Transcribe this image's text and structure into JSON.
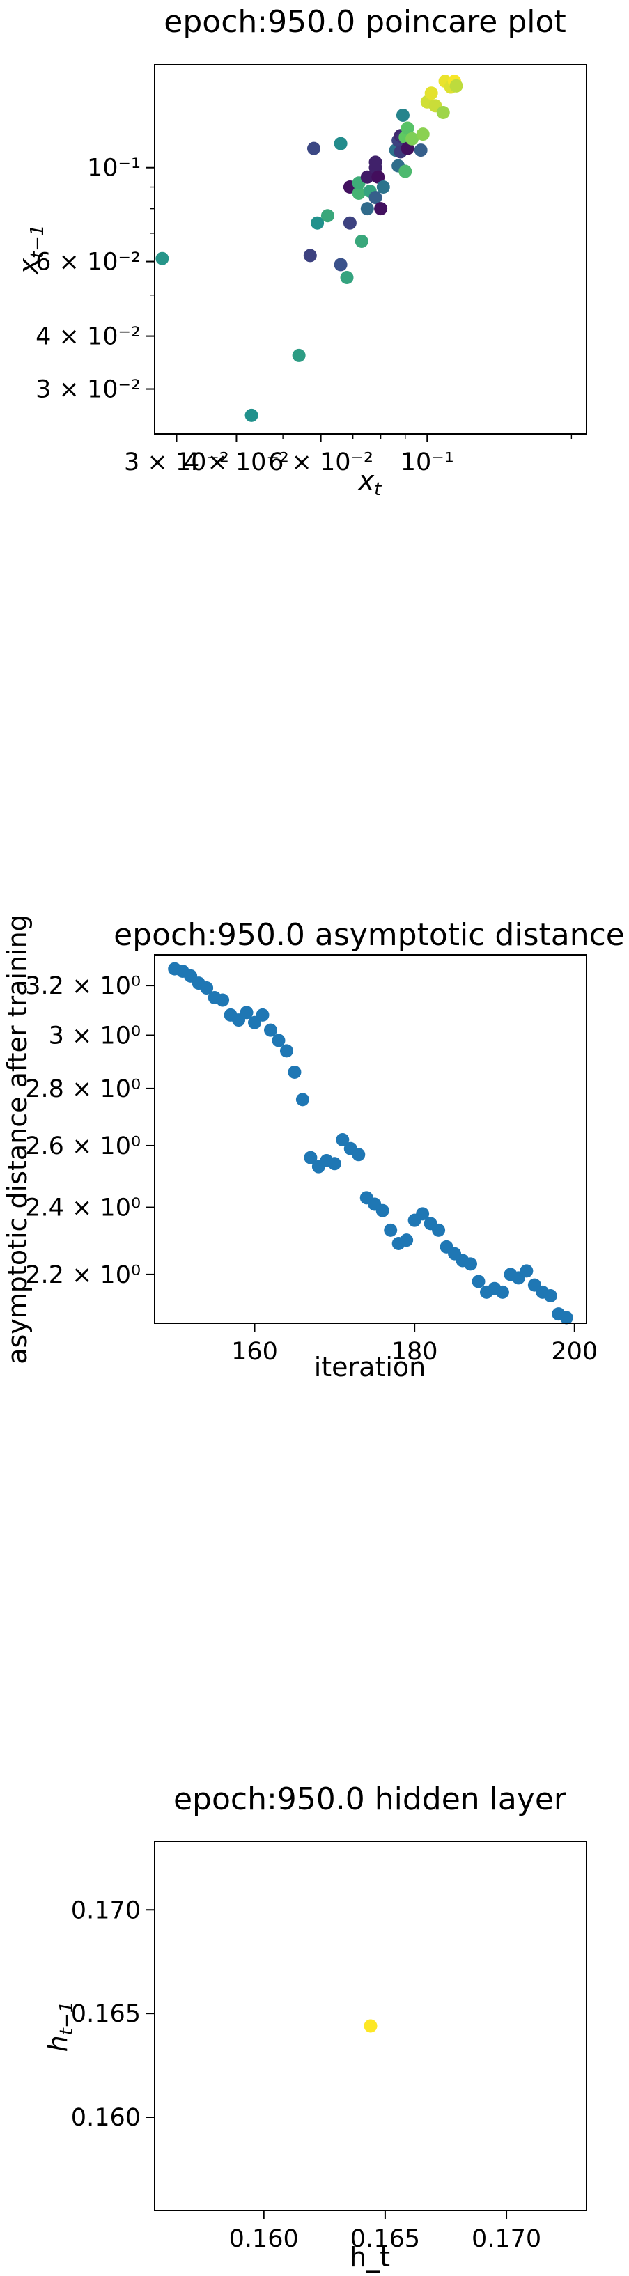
{
  "chart_data": [
    {
      "type": "scatter",
      "title": "epoch:950.0 poincare plot",
      "xlabel": "x_t",
      "ylabel": "x_{t−1}",
      "x_scale": "log",
      "y_scale": "log",
      "xlim": [
        0.027,
        0.215
      ],
      "ylim": [
        0.0235,
        0.175
      ],
      "grid": false,
      "colormap": "viridis",
      "x_ticks": [
        {
          "value": 0.03,
          "label": "3 × 10⁻²"
        },
        {
          "value": 0.04,
          "label": "4 × 10⁻²"
        },
        {
          "value": 0.06,
          "label": "6 × 10⁻²"
        },
        {
          "value": 0.1,
          "label": "10⁻¹"
        }
      ],
      "y_ticks": [
        {
          "value": 0.03,
          "label": "3 × 10⁻²"
        },
        {
          "value": 0.04,
          "label": "4 × 10⁻²"
        },
        {
          "value": 0.06,
          "label": "6 × 10⁻²"
        },
        {
          "value": 0.1,
          "label": "10⁻¹"
        }
      ],
      "points": [
        {
          "x": 0.043,
          "y": 0.026,
          "c": 0.5
        },
        {
          "x": 0.028,
          "y": 0.061,
          "c": 0.52
        },
        {
          "x": 0.054,
          "y": 0.036,
          "c": 0.55
        },
        {
          "x": 0.057,
          "y": 0.062,
          "c": 0.2
        },
        {
          "x": 0.058,
          "y": 0.111,
          "c": 0.22
        },
        {
          "x": 0.059,
          "y": 0.074,
          "c": 0.5
        },
        {
          "x": 0.062,
          "y": 0.077,
          "c": 0.6
        },
        {
          "x": 0.066,
          "y": 0.114,
          "c": 0.48
        },
        {
          "x": 0.066,
          "y": 0.059,
          "c": 0.25
        },
        {
          "x": 0.068,
          "y": 0.055,
          "c": 0.58
        },
        {
          "x": 0.069,
          "y": 0.074,
          "c": 0.2
        },
        {
          "x": 0.069,
          "y": 0.09,
          "c": 0.05
        },
        {
          "x": 0.072,
          "y": 0.087,
          "c": 0.65
        },
        {
          "x": 0.072,
          "y": 0.092,
          "c": 0.62
        },
        {
          "x": 0.073,
          "y": 0.067,
          "c": 0.6
        },
        {
          "x": 0.075,
          "y": 0.08,
          "c": 0.35
        },
        {
          "x": 0.075,
          "y": 0.095,
          "c": 0.08
        },
        {
          "x": 0.076,
          "y": 0.088,
          "c": 0.58
        },
        {
          "x": 0.078,
          "y": 0.085,
          "c": 0.3
        },
        {
          "x": 0.078,
          "y": 0.1,
          "c": 0.1
        },
        {
          "x": 0.078,
          "y": 0.103,
          "c": 0.1
        },
        {
          "x": 0.079,
          "y": 0.095,
          "c": 0.04
        },
        {
          "x": 0.08,
          "y": 0.08,
          "c": 0.05
        },
        {
          "x": 0.081,
          "y": 0.09,
          "c": 0.38
        },
        {
          "x": 0.086,
          "y": 0.11,
          "c": 0.38
        },
        {
          "x": 0.087,
          "y": 0.116,
          "c": 0.2
        },
        {
          "x": 0.087,
          "y": 0.101,
          "c": 0.36
        },
        {
          "x": 0.088,
          "y": 0.119,
          "c": 0.12
        },
        {
          "x": 0.088,
          "y": 0.109,
          "c": 0.18
        },
        {
          "x": 0.089,
          "y": 0.118,
          "c": 0.15
        },
        {
          "x": 0.089,
          "y": 0.133,
          "c": 0.45
        },
        {
          "x": 0.09,
          "y": 0.098,
          "c": 0.68
        },
        {
          "x": 0.09,
          "y": 0.118,
          "c": 0.75
        },
        {
          "x": 0.091,
          "y": 0.124,
          "c": 0.72
        },
        {
          "x": 0.091,
          "y": 0.111,
          "c": 0.05
        },
        {
          "x": 0.093,
          "y": 0.117,
          "c": 0.8
        },
        {
          "x": 0.097,
          "y": 0.11,
          "c": 0.3
        },
        {
          "x": 0.098,
          "y": 0.12,
          "c": 0.82
        },
        {
          "x": 0.1,
          "y": 0.143,
          "c": 0.93
        },
        {
          "x": 0.102,
          "y": 0.15,
          "c": 0.96
        },
        {
          "x": 0.104,
          "y": 0.14,
          "c": 0.92
        },
        {
          "x": 0.108,
          "y": 0.135,
          "c": 0.85
        },
        {
          "x": 0.109,
          "y": 0.16,
          "c": 0.97
        },
        {
          "x": 0.112,
          "y": 0.155,
          "c": 0.95
        },
        {
          "x": 0.114,
          "y": 0.16,
          "c": 0.99
        },
        {
          "x": 0.115,
          "y": 0.156,
          "c": 0.9
        }
      ]
    },
    {
      "type": "scatter",
      "title": "epoch:950.0 asymptotic distance",
      "xlabel": "iteration",
      "ylabel": "asymptotic distance after training",
      "x_scale": "linear",
      "y_scale": "log",
      "xlim": [
        147.5,
        201.5
      ],
      "ylim": [
        2.065,
        3.33
      ],
      "grid": false,
      "color": "#1f77b4",
      "x_ticks": [
        {
          "value": 160,
          "label": "160"
        },
        {
          "value": 180,
          "label": "180"
        },
        {
          "value": 200,
          "label": "200"
        }
      ],
      "y_ticks": [
        {
          "value": 2.2,
          "label": "2.2 × 10⁰"
        },
        {
          "value": 2.4,
          "label": "2.4 × 10⁰"
        },
        {
          "value": 2.6,
          "label": "2.6 × 10⁰"
        },
        {
          "value": 2.8,
          "label": "2.8 × 10⁰"
        },
        {
          "value": 3.0,
          "label": "3 × 10⁰"
        },
        {
          "value": 3.2,
          "label": "3.2 × 10⁰"
        }
      ],
      "x": [
        150,
        151,
        152,
        153,
        154,
        155,
        156,
        157,
        158,
        159,
        160,
        161,
        162,
        163,
        164,
        165,
        166,
        167,
        168,
        169,
        170,
        171,
        172,
        173,
        174,
        175,
        176,
        177,
        178,
        179,
        180,
        181,
        182,
        183,
        184,
        185,
        186,
        187,
        188,
        189,
        190,
        191,
        192,
        193,
        194,
        195,
        196,
        197,
        198,
        199
      ],
      "y": [
        3.27,
        3.26,
        3.24,
        3.21,
        3.19,
        3.15,
        3.14,
        3.08,
        3.06,
        3.09,
        3.05,
        3.08,
        3.02,
        2.98,
        2.94,
        2.86,
        2.76,
        2.56,
        2.53,
        2.55,
        2.54,
        2.62,
        2.59,
        2.57,
        2.43,
        2.41,
        2.39,
        2.33,
        2.29,
        2.3,
        2.36,
        2.38,
        2.35,
        2.33,
        2.28,
        2.26,
        2.24,
        2.23,
        2.18,
        2.15,
        2.16,
        2.15,
        2.2,
        2.19,
        2.21,
        2.17,
        2.15,
        2.14,
        2.09,
        2.08
      ]
    },
    {
      "type": "scatter",
      "title": "epoch:950.0 hidden layer",
      "xlabel": "h_t",
      "ylabel": "h_{t−1}",
      "x_scale": "linear",
      "y_scale": "linear",
      "xlim": [
        0.1555,
        0.1733
      ],
      "ylim": [
        0.1555,
        0.1733
      ],
      "grid": false,
      "color": "#fde725",
      "x_ticks": [
        {
          "value": 0.16,
          "label": "0.160"
        },
        {
          "value": 0.165,
          "label": "0.165"
        },
        {
          "value": 0.17,
          "label": "0.170"
        }
      ],
      "y_ticks": [
        {
          "value": 0.16,
          "label": "0.160"
        },
        {
          "value": 0.165,
          "label": "0.165"
        },
        {
          "value": 0.17,
          "label": "0.170"
        }
      ],
      "points": [
        {
          "x": 0.1644,
          "y": 0.1644
        }
      ]
    }
  ]
}
